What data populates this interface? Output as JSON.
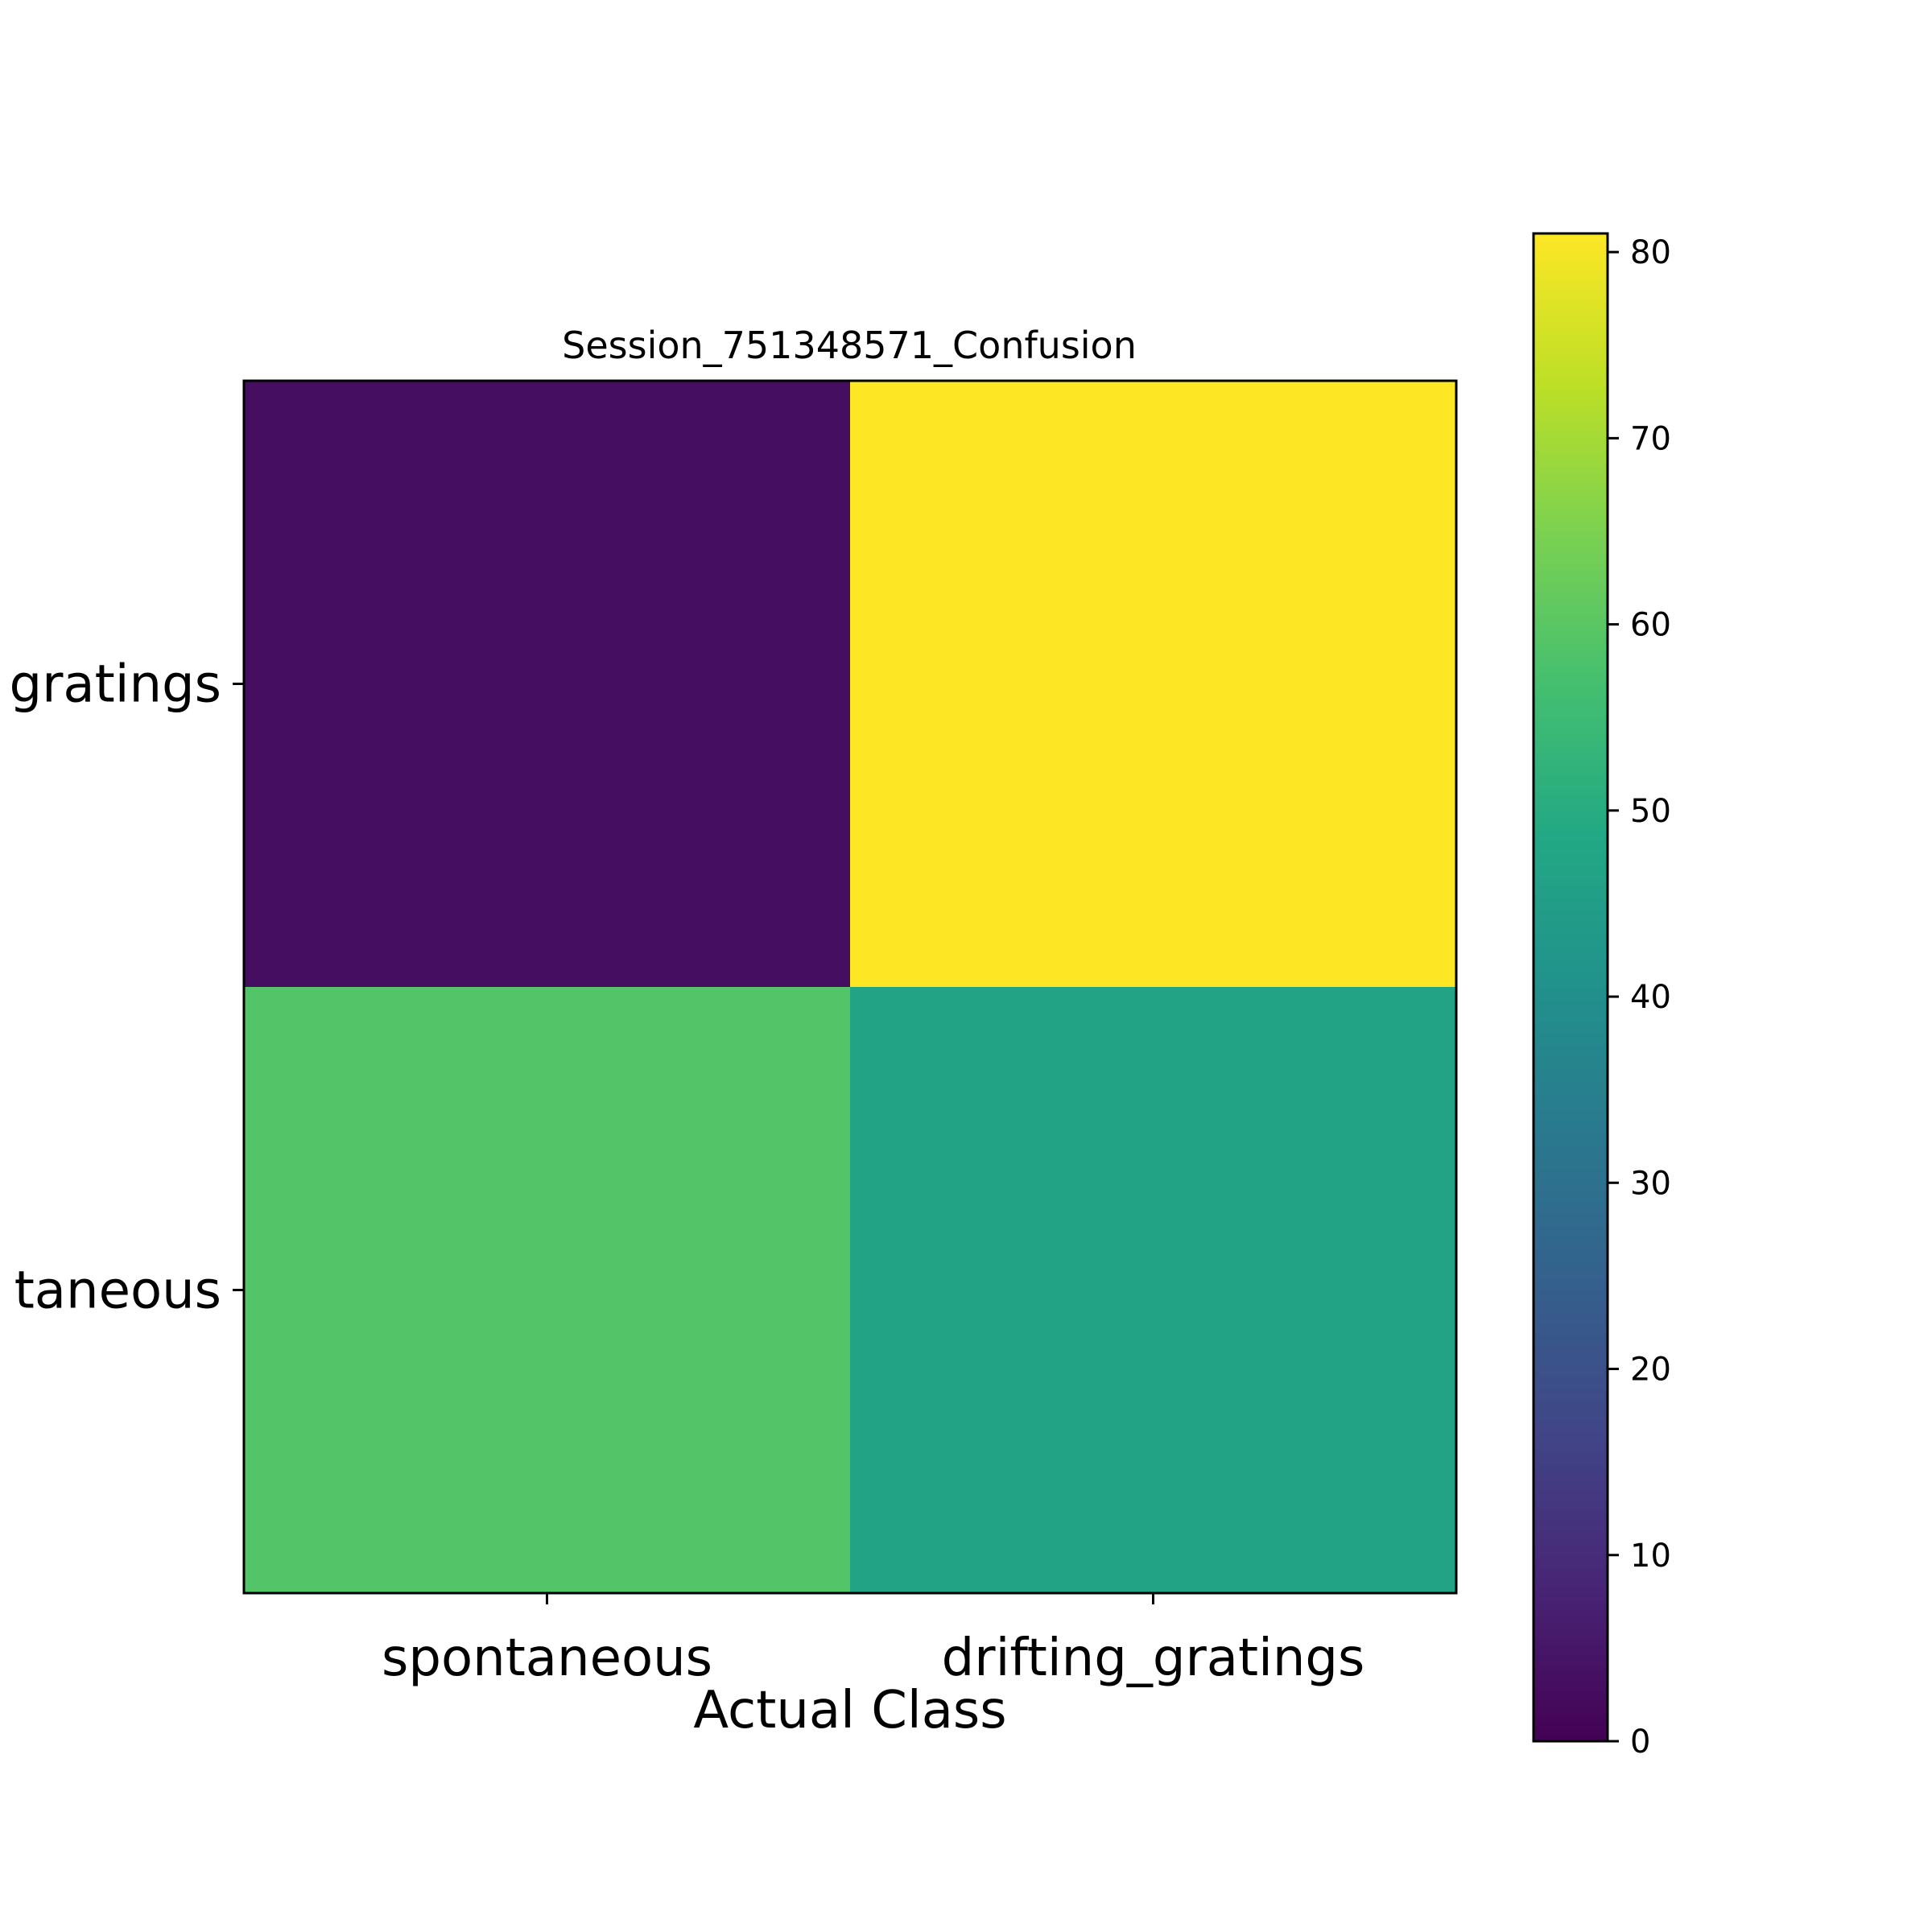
{
  "chart_data": {
    "type": "heatmap",
    "title": "Session_751348571_Confusion",
    "xlabel": "Actual Class",
    "ylabel": "",
    "x_categories": [
      "spontaneous",
      "drifting_gratings"
    ],
    "y_categories": [
      "drifting_gratings",
      "spontaneous"
    ],
    "y_tick_labels_visible": [
      "gratings",
      "taneous"
    ],
    "matrix": [
      [
        3,
        81
      ],
      [
        59,
        47
      ]
    ],
    "colormap": "viridis",
    "colorbar": {
      "range": [
        0,
        81
      ],
      "ticks": [
        0,
        10,
        20,
        30,
        40,
        50,
        60,
        70,
        80
      ]
    }
  }
}
